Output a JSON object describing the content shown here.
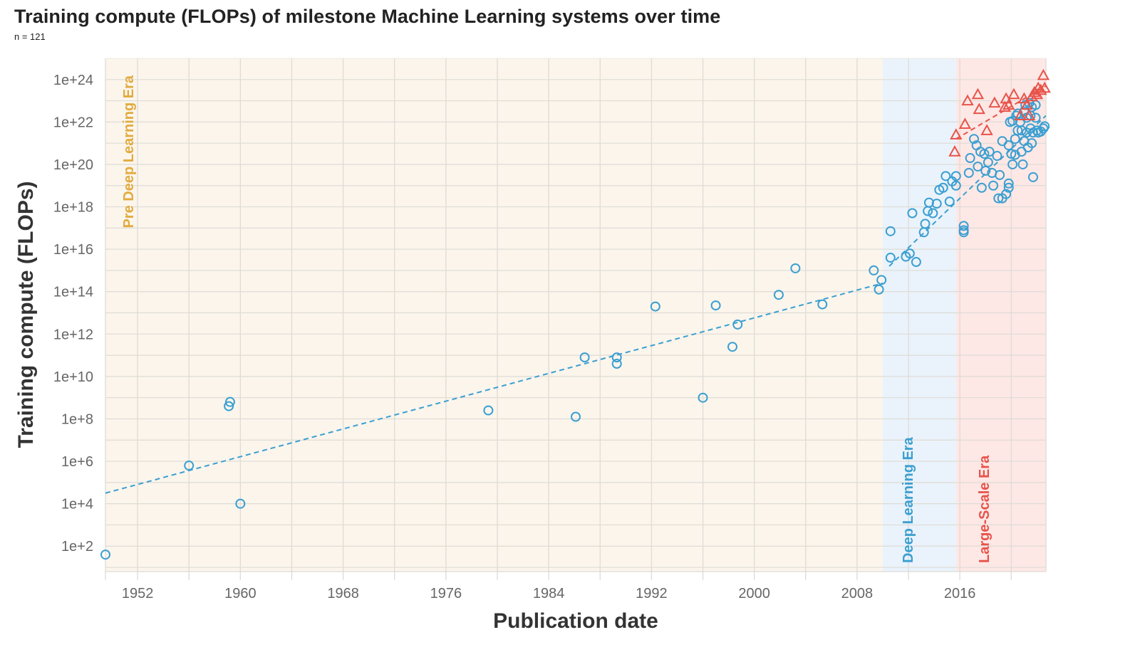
{
  "page": {
    "title": "Training compute (FLOPs) of milestone Machine Learning systems over time",
    "subtitle": "n = 121"
  },
  "colors": {
    "deep_learning": "#3b9fd1",
    "large_scale": "#e8534a",
    "pre_dl_text": "#e2ab3f",
    "pre_dl_band": "#fbf5ec",
    "dl_band": "#eaf3fb",
    "ls_band": "#fde8e6",
    "grid": "#dedbd6",
    "tick_text": "#666666"
  },
  "chart_data": {
    "type": "scatter",
    "title": "Training compute (FLOPs) of milestone Machine Learning systems over time",
    "subtitle": "n = 121",
    "xlabel": "Publication date",
    "ylabel": "Training compute (FLOPs)",
    "xlim": [
      1949.5,
      2022.7
    ],
    "ylim": [
      0.8,
      25
    ],
    "y_scale": "log10",
    "x_ticks": [
      1952,
      1960,
      1968,
      1976,
      1984,
      1992,
      2000,
      2008,
      2016
    ],
    "x_tick_labels": [
      "1952",
      "1960",
      "1968",
      "1976",
      "1984",
      "1992",
      "2000",
      "2008",
      "2016"
    ],
    "y_ticks_exp": [
      2,
      4,
      6,
      8,
      10,
      12,
      14,
      16,
      18,
      20,
      22,
      24
    ],
    "y_tick_labels": [
      "1e+2",
      "1e+4",
      "1e+6",
      "1e+8",
      "1e+10",
      "1e+12",
      "1e+14",
      "1e+16",
      "1e+18",
      "1e+20",
      "1e+22",
      "1e+24"
    ],
    "grid": true,
    "eras": [
      {
        "name": "Pre Deep Learning Era",
        "start": 1949.5,
        "end": 2010.0,
        "label_position": "top-left"
      },
      {
        "name": "Deep Learning Era",
        "start": 2010.0,
        "end": 2015.7,
        "label_position": "bottom"
      },
      {
        "name": "Large-Scale Era",
        "start": 2015.7,
        "end": 2022.7,
        "label_position": "bottom"
      }
    ],
    "trend_lines": [
      {
        "series": "Regular-scale",
        "x": [
          1949.5,
          2010.0
        ],
        "y_exp": [
          4.5,
          14.4
        ]
      },
      {
        "series": "Regular-scale",
        "x": [
          2010.5,
          2022.7
        ],
        "y_exp": [
          15.2,
          22.3
        ]
      },
      {
        "series": "Large-scale",
        "x": [
          2015.7,
          2022.7
        ],
        "y_exp": [
          21.2,
          23.7
        ]
      }
    ],
    "series": [
      {
        "marker": "circle",
        "color": "#3b9fd1",
        "points": [
          [
            1949.5,
            1.6
          ],
          [
            1956.0,
            5.8
          ],
          [
            1959.1,
            8.6
          ],
          [
            1959.2,
            8.8
          ],
          [
            1960.0,
            4.0
          ],
          [
            1979.3,
            8.4
          ],
          [
            1986.1,
            8.1
          ],
          [
            1986.8,
            10.9
          ],
          [
            1989.3,
            10.9
          ],
          [
            1989.3,
            10.6
          ],
          [
            1992.3,
            13.3
          ],
          [
            1996.0,
            9.0
          ],
          [
            1997.0,
            13.35
          ],
          [
            1998.3,
            11.4
          ],
          [
            1998.7,
            12.45
          ],
          [
            2001.9,
            13.85
          ],
          [
            2003.2,
            15.1
          ],
          [
            2005.3,
            13.4
          ],
          [
            2009.3,
            15.0
          ],
          [
            2009.7,
            14.1
          ],
          [
            2009.9,
            14.55
          ],
          [
            2010.6,
            16.85
          ],
          [
            2010.6,
            15.6
          ],
          [
            2011.8,
            15.65
          ],
          [
            2012.1,
            15.8
          ],
          [
            2012.6,
            15.4
          ],
          [
            2012.3,
            17.7
          ],
          [
            2013.2,
            16.8
          ],
          [
            2013.3,
            17.2
          ],
          [
            2013.5,
            17.8
          ],
          [
            2013.6,
            18.2
          ],
          [
            2013.9,
            17.7
          ],
          [
            2014.2,
            18.15
          ],
          [
            2014.4,
            18.8
          ],
          [
            2014.7,
            18.9
          ],
          [
            2014.9,
            19.45
          ],
          [
            2015.2,
            18.25
          ],
          [
            2015.4,
            19.2
          ],
          [
            2015.7,
            19.45
          ],
          [
            2015.7,
            19.0
          ],
          [
            2016.3,
            17.1
          ],
          [
            2016.3,
            16.9
          ],
          [
            2016.3,
            16.8
          ],
          [
            2016.7,
            19.6
          ],
          [
            2016.8,
            20.3
          ],
          [
            2017.1,
            21.2
          ],
          [
            2017.3,
            20.9
          ],
          [
            2017.4,
            19.9
          ],
          [
            2017.6,
            20.6
          ],
          [
            2017.7,
            18.9
          ],
          [
            2017.9,
            20.5
          ],
          [
            2018.0,
            19.7
          ],
          [
            2018.2,
            20.1
          ],
          [
            2018.3,
            20.6
          ],
          [
            2018.5,
            19.6
          ],
          [
            2018.6,
            19.0
          ],
          [
            2018.9,
            20.4
          ],
          [
            2019.0,
            18.4
          ],
          [
            2019.1,
            19.5
          ],
          [
            2019.3,
            21.1
          ],
          [
            2019.3,
            18.4
          ],
          [
            2019.6,
            18.6
          ],
          [
            2019.8,
            20.9
          ],
          [
            2019.8,
            19.1
          ],
          [
            2019.8,
            18.9
          ],
          [
            2019.9,
            22.0
          ],
          [
            2020.0,
            20.5
          ],
          [
            2020.1,
            22.05
          ],
          [
            2020.1,
            20.0
          ],
          [
            2020.3,
            21.2
          ],
          [
            2020.3,
            20.45
          ],
          [
            2020.4,
            22.3
          ],
          [
            2020.5,
            22.4
          ],
          [
            2020.5,
            21.6
          ],
          [
            2020.7,
            22.0
          ],
          [
            2020.8,
            21.6
          ],
          [
            2020.8,
            20.6
          ],
          [
            2020.9,
            20.0
          ],
          [
            2021.0,
            22.5
          ],
          [
            2021.0,
            21.1
          ],
          [
            2021.1,
            22.8
          ],
          [
            2021.2,
            22.2
          ],
          [
            2021.2,
            21.5
          ],
          [
            2021.3,
            20.8
          ],
          [
            2021.4,
            22.9
          ],
          [
            2021.5,
            22.3
          ],
          [
            2021.5,
            21.7
          ],
          [
            2021.6,
            22.7
          ],
          [
            2021.6,
            21.0
          ],
          [
            2021.7,
            21.5
          ],
          [
            2021.7,
            19.4
          ],
          [
            2021.9,
            22.8
          ],
          [
            2021.9,
            22.2
          ],
          [
            2022.0,
            21.6
          ],
          [
            2022.1,
            21.5
          ],
          [
            2022.3,
            21.55
          ],
          [
            2022.5,
            21.7
          ],
          [
            2022.6,
            21.8
          ]
        ]
      },
      {
        "marker": "triangle",
        "color": "#e8534a",
        "points": [
          [
            2015.6,
            20.6
          ],
          [
            2015.7,
            21.4
          ],
          [
            2016.4,
            21.9
          ],
          [
            2016.6,
            23.0
          ],
          [
            2017.4,
            23.3
          ],
          [
            2017.5,
            22.6
          ],
          [
            2018.1,
            21.6
          ],
          [
            2018.7,
            22.9
          ],
          [
            2019.5,
            22.7
          ],
          [
            2019.6,
            23.1
          ],
          [
            2019.8,
            22.8
          ],
          [
            2020.2,
            23.3
          ],
          [
            2020.7,
            22.3
          ],
          [
            2021.0,
            23.1
          ],
          [
            2021.2,
            22.8
          ],
          [
            2021.4,
            22.3
          ],
          [
            2021.6,
            23.2
          ],
          [
            2021.8,
            23.4
          ],
          [
            2022.0,
            23.3
          ],
          [
            2022.1,
            23.6
          ],
          [
            2022.3,
            23.5
          ],
          [
            2022.5,
            24.2
          ],
          [
            2022.6,
            23.6
          ]
        ]
      }
    ]
  }
}
